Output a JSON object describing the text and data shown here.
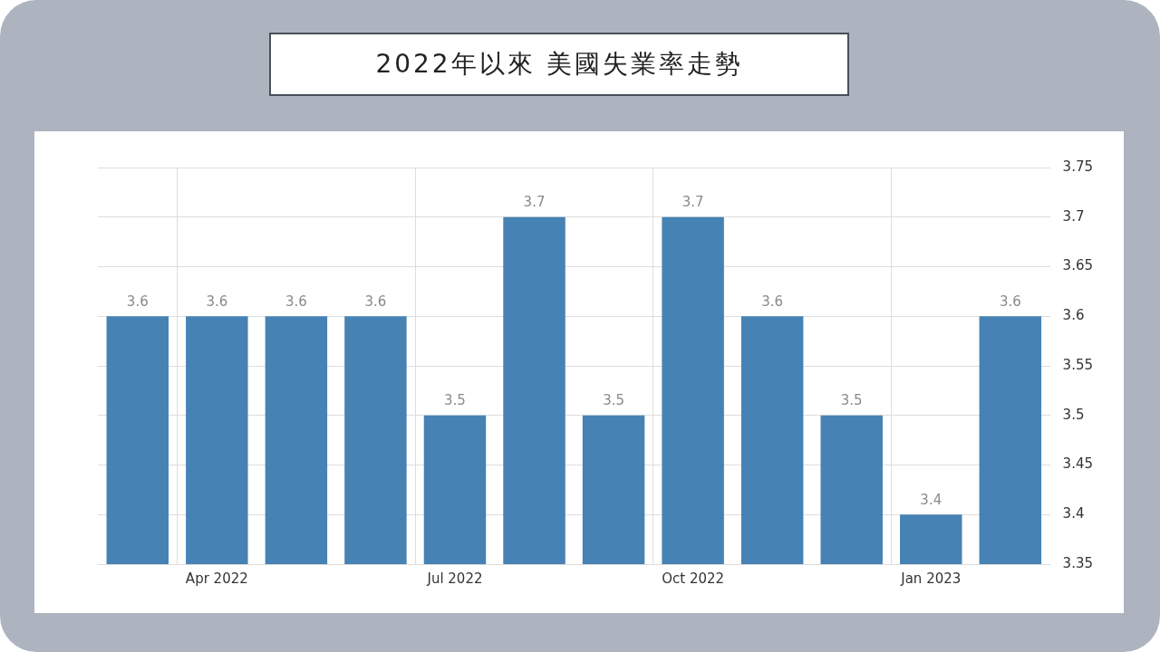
{
  "chart_data": {
    "type": "bar",
    "title": "2022年以來 美國失業率走勢",
    "categories": [
      null,
      "Apr 2022",
      null,
      null,
      "Jul 2022",
      null,
      null,
      "Oct 2022",
      null,
      null,
      "Jan 2023",
      null
    ],
    "values": [
      3.6,
      3.6,
      3.6,
      3.6,
      3.5,
      3.7,
      3.5,
      3.7,
      3.6,
      3.5,
      3.4,
      3.6
    ],
    "color": "#4682b4",
    "ylim": [
      3.35,
      3.75
    ],
    "yticks": [
      3.35,
      3.4,
      3.45,
      3.5,
      3.55,
      3.6,
      3.65,
      3.7,
      3.75
    ],
    "grid": true,
    "legend": false,
    "data_labels": true
  }
}
